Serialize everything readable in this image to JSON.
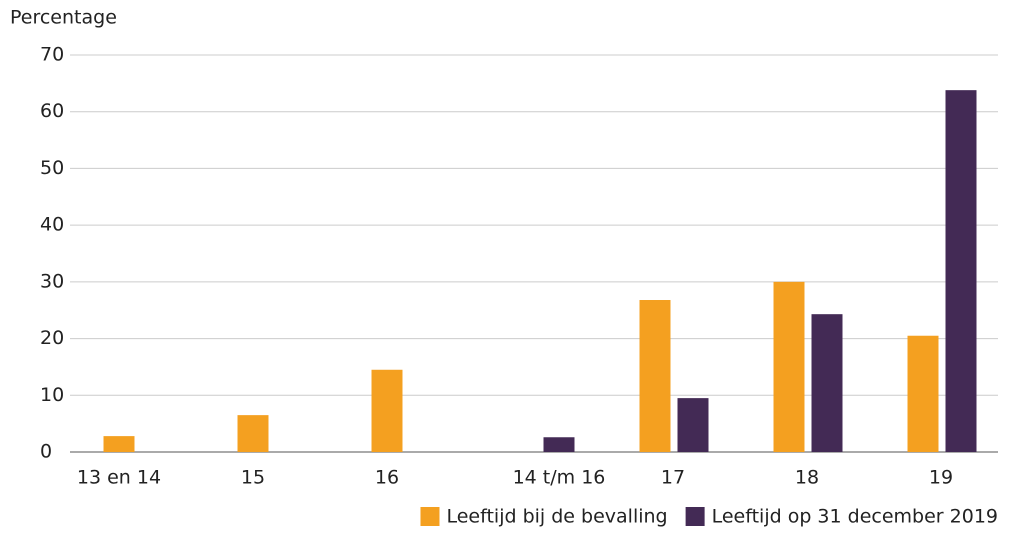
{
  "chart_data": {
    "type": "bar",
    "y_label": "Percentage",
    "categories": [
      "13 en 14",
      "15",
      "16",
      "14 t/m 16",
      "17",
      "18",
      "19"
    ],
    "series": [
      {
        "name": "Leeftijd bij de bevalling",
        "color": "#f4a020",
        "values": [
          2.8,
          6.5,
          14.5,
          null,
          26.8,
          30.0,
          20.5
        ]
      },
      {
        "name": "Leeftijd op 31 december 2019",
        "color": "#432a55",
        "values": [
          null,
          null,
          null,
          2.6,
          9.5,
          24.3,
          63.8
        ]
      }
    ],
    "ylim": [
      0,
      70
    ],
    "yticks": [
      0,
      10,
      20,
      30,
      40,
      50,
      60,
      70
    ],
    "grid": true,
    "legend": "bottom-right"
  }
}
